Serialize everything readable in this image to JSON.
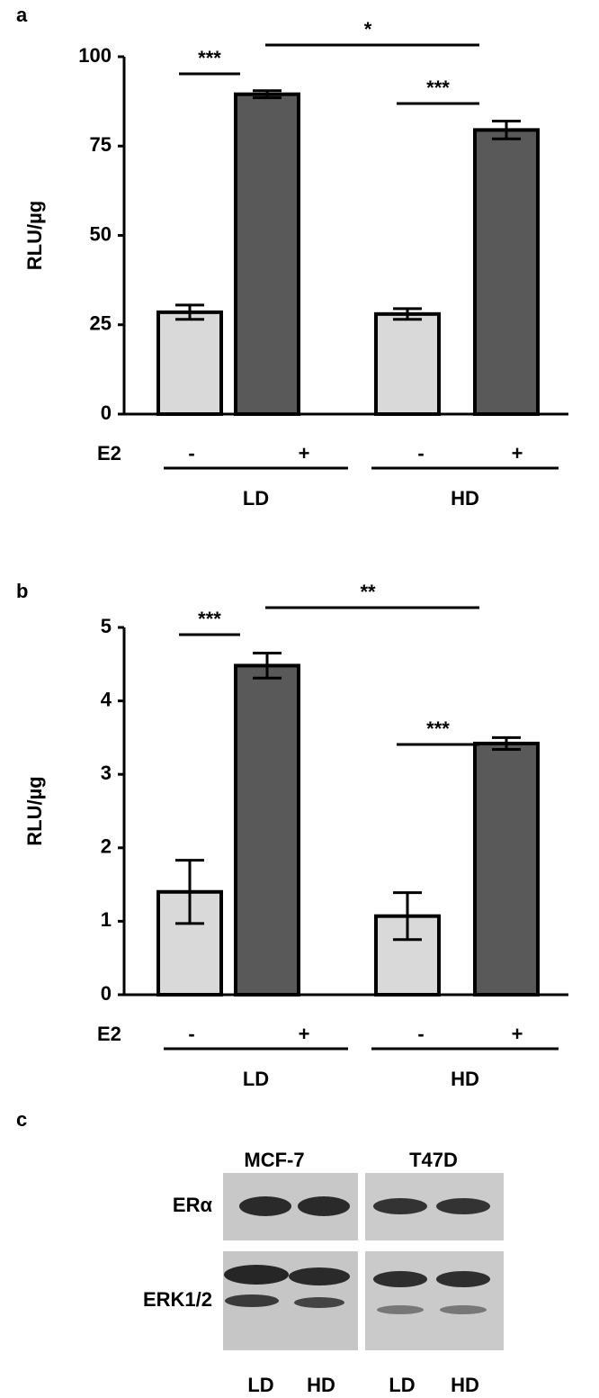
{
  "chart_data": [
    {
      "type": "bar",
      "panel": "a",
      "ylabel": "RLU/µg",
      "row_label": "E2",
      "categories": [
        "-",
        "+",
        "-",
        "+"
      ],
      "groups": [
        "LD",
        "HD"
      ],
      "values": [
        28.5,
        89.5,
        28,
        79.5
      ],
      "errors": [
        2,
        1,
        1.5,
        2.5
      ],
      "colors": [
        "#d9d9d9",
        "#595959",
        "#d9d9d9",
        "#595959"
      ],
      "ylim": [
        0,
        100
      ],
      "yticks": [
        0,
        25,
        50,
        75,
        100
      ],
      "annotations": [
        {
          "text": "***",
          "bars": [
            0,
            1
          ]
        },
        {
          "text": "*",
          "bars": [
            1,
            3
          ]
        },
        {
          "text": "***",
          "bars": [
            2,
            3
          ]
        }
      ]
    },
    {
      "type": "bar",
      "panel": "b",
      "ylabel": "RLU/µg",
      "row_label": "E2",
      "categories": [
        "-",
        "+",
        "-",
        "+"
      ],
      "groups": [
        "LD",
        "HD"
      ],
      "values": [
        1.4,
        4.48,
        1.07,
        3.42
      ],
      "errors": [
        0.43,
        0.17,
        0.32,
        0.08
      ],
      "colors": [
        "#d9d9d9",
        "#595959",
        "#d9d9d9",
        "#595959"
      ],
      "ylim": [
        0,
        5
      ],
      "yticks": [
        0,
        1,
        2,
        3,
        4,
        5
      ],
      "annotations": [
        {
          "text": "***",
          "bars": [
            0,
            1
          ]
        },
        {
          "text": "**",
          "bars": [
            1,
            3
          ]
        },
        {
          "text": "***",
          "bars": [
            2,
            3
          ]
        }
      ]
    }
  ],
  "blot": {
    "panel": "c",
    "cell_lines": [
      "MCF-7",
      "T47D"
    ],
    "proteins": [
      "ERα",
      "ERK1/2"
    ],
    "lanes": [
      "LD",
      "HD",
      "LD",
      "HD"
    ]
  }
}
